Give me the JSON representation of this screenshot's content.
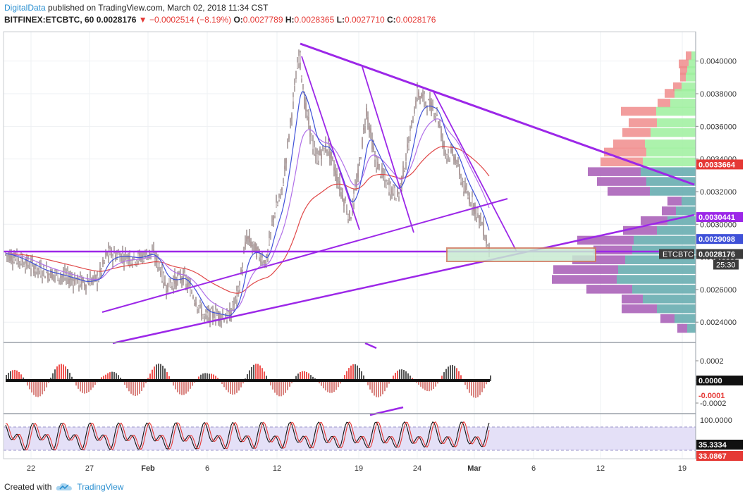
{
  "header": {
    "brand": "DigitalData",
    "published": "published on TradingView.com, March 02, 2018 11:34 CST",
    "symbol": "BITFINEX:ETCBTC, 60",
    "last": "0.0028176",
    "change": "−0.0002514 (−8.19%)",
    "o_label": "O:",
    "o": "0.0027789",
    "h_label": "H:",
    "h": "0.0028365",
    "l_label": "L:",
    "l": "0.0027710",
    "c_label": "C:",
    "c": "0.0028176"
  },
  "footer": {
    "created": "Created with",
    "brand": "TradingView"
  },
  "colors": {
    "purple": "#9c27e8",
    "red": "#e53935",
    "blue": "#3f51d8",
    "bull": "#26a69a",
    "bear": "#ef5350",
    "grid": "#eef0f3"
  },
  "chart_data": {
    "type": "candlestick",
    "x_ticks": [
      "22",
      "27",
      "Feb",
      "6",
      "12",
      "19",
      "24",
      "Mar",
      "6",
      "12",
      "19"
    ],
    "price_axis": {
      "ticks": [
        "0.0024000",
        "0.0026000",
        "0.0028000",
        "0.0030000",
        "0.0032000",
        "0.0034000",
        "0.0036000",
        "0.0038000",
        "0.0040000"
      ],
      "ylim": [
        0.00228,
        0.00418
      ]
    },
    "price_labels": [
      {
        "text": "0.0033664",
        "value": 0.0033664,
        "color": "#e53935"
      },
      {
        "text": "0.0030441",
        "value": 0.0030441,
        "color": "#9c27e8"
      },
      {
        "text": "0.0029098",
        "value": 0.0029098,
        "color": "#3f51d8"
      },
      {
        "text": "ETCBTC",
        "value": 0.0028176,
        "color": "#444444"
      },
      {
        "text": "0.0028176",
        "value": 0.0028176,
        "color": "#ffffff"
      },
      {
        "text": "25:30",
        "value": 0.00277,
        "color": "#444444"
      }
    ],
    "oscillator1": {
      "ticks": [
        "0.0002",
        "0.0000",
        "-0.0002"
      ],
      "labels": [
        {
          "text": "0.0000",
          "color": "#ffffff"
        },
        {
          "text": "-0.0001",
          "color": "#e53935"
        }
      ]
    },
    "oscillator2": {
      "ticks": [
        "100.0000"
      ],
      "labels": [
        {
          "text": "35.3334",
          "color": "#ffffff"
        },
        {
          "text": "33.0867",
          "color": "#e53935"
        }
      ]
    },
    "volume_profile": [
      {
        "price": 0.00403,
        "green": 6,
        "red": 8
      },
      {
        "price": 0.00398,
        "green": 10,
        "red": 14
      },
      {
        "price": 0.00394,
        "green": 12,
        "red": 10
      },
      {
        "price": 0.0039,
        "green": 14,
        "red": 8
      },
      {
        "price": 0.00384,
        "green": 20,
        "red": 12
      },
      {
        "price": 0.0038,
        "green": 30,
        "red": 14
      },
      {
        "price": 0.00374,
        "green": 36,
        "red": 18
      },
      {
        "price": 0.00369,
        "green": 56,
        "red": 50
      },
      {
        "price": 0.00362,
        "green": 55,
        "red": 40
      },
      {
        "price": 0.00356,
        "green": 64,
        "red": 40
      },
      {
        "price": 0.00349,
        "green": 72,
        "red": 45
      },
      {
        "price": 0.00344,
        "green": 70,
        "red": 60
      },
      {
        "price": 0.00338,
        "green": 75,
        "red": 60
      },
      {
        "price": 0.00332,
        "green": 78,
        "red": 75
      },
      {
        "price": 0.00326,
        "green": 70,
        "red": 70
      },
      {
        "price": 0.0032,
        "green": 65,
        "red": 60
      },
      {
        "price": 0.00314,
        "green": 20,
        "red": 20
      },
      {
        "price": 0.00308,
        "green": 28,
        "red": 20
      },
      {
        "price": 0.00302,
        "green": 40,
        "red": 38
      },
      {
        "price": 0.00296,
        "green": 55,
        "red": 48
      },
      {
        "price": 0.0029,
        "green": 88,
        "red": 80
      },
      {
        "price": 0.00284,
        "green": 90,
        "red": 55
      },
      {
        "price": 0.00278,
        "green": 100,
        "red": 75
      },
      {
        "price": 0.00272,
        "green": 110,
        "red": 92
      },
      {
        "price": 0.00266,
        "green": 112,
        "red": 92
      },
      {
        "price": 0.0026,
        "green": 90,
        "red": 65
      },
      {
        "price": 0.00254,
        "green": 75,
        "red": 30
      },
      {
        "price": 0.00248,
        "green": 55,
        "red": 50
      },
      {
        "price": 0.00242,
        "green": 30,
        "red": 20
      },
      {
        "price": 0.00236,
        "green": 12,
        "red": 14
      }
    ]
  }
}
